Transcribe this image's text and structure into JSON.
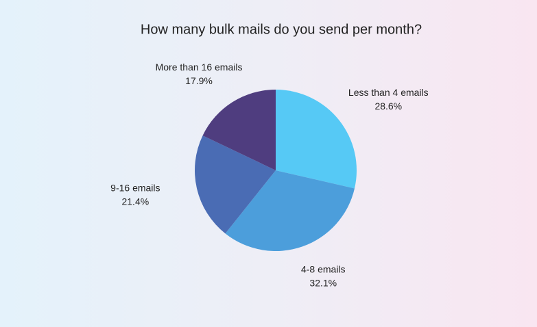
{
  "chart_data": {
    "type": "pie",
    "title": "How many bulk mails do you send per month?",
    "categories": [
      "Less than 4 emails",
      "4-8 emails",
      "9-16 emails",
      "More than 16 emails"
    ],
    "values": [
      28.6,
      32.1,
      21.4,
      17.9
    ],
    "value_labels": [
      "28.6%",
      "32.1%",
      "21.4%",
      "17.9%"
    ],
    "colors": [
      "#56c9f5",
      "#4c9edb",
      "#4a6cb4",
      "#4f3d7f"
    ]
  }
}
